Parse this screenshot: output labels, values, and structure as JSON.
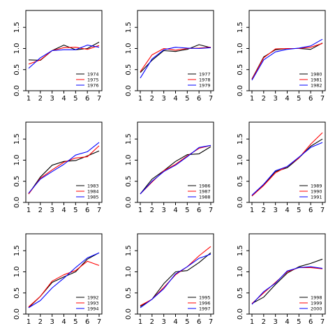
{
  "chart_data": [
    {
      "type": "line",
      "x": [
        1,
        2,
        3,
        4,
        5,
        6,
        7
      ],
      "xlim": [
        1,
        7
      ],
      "ylim": [
        0,
        1.9
      ],
      "yticks": [
        0.0,
        0.5,
        1.0,
        1.5
      ],
      "ytick_labels": [
        "0.0",
        "0.5",
        "1.0",
        "1.5"
      ],
      "xtick_labels": [
        "1",
        "2",
        "3",
        "4",
        "5",
        "6",
        "7"
      ],
      "legend": "bottom-right",
      "series": [
        {
          "name": "1974",
          "color": "#000000",
          "values": [
            0.73,
            0.72,
            0.95,
            1.08,
            0.97,
            1.0,
            1.15
          ]
        },
        {
          "name": "1975",
          "color": "#ff0000",
          "values": [
            0.63,
            0.73,
            0.95,
            1.02,
            1.03,
            0.98,
            1.07
          ]
        },
        {
          "name": "1976",
          "color": "#0000ff",
          "values": [
            0.53,
            0.78,
            0.95,
            0.97,
            0.97,
            1.08,
            1.03
          ]
        }
      ]
    },
    {
      "type": "line",
      "x": [
        1,
        2,
        3,
        4,
        5,
        6,
        7
      ],
      "xlim": [
        1,
        7
      ],
      "ylim": [
        0,
        1.9
      ],
      "yticks": [
        0.0,
        0.5,
        1.0,
        1.5
      ],
      "ytick_labels": [
        "0.0",
        "0.5",
        "1.0",
        "1.5"
      ],
      "xtick_labels": [
        "1",
        "2",
        "3",
        "4",
        "5",
        "6",
        "7"
      ],
      "legend": "bottom-right",
      "series": [
        {
          "name": "1977",
          "color": "#000000",
          "values": [
            0.43,
            0.72,
            0.95,
            0.93,
            0.98,
            1.09,
            1.02
          ]
        },
        {
          "name": "1978",
          "color": "#ff0000",
          "values": [
            0.45,
            0.85,
            1.0,
            0.96,
            1.0,
            1.01,
            1.03
          ]
        },
        {
          "name": "1979",
          "color": "#0000ff",
          "values": [
            0.3,
            0.75,
            0.97,
            1.03,
            1.01,
            1.0,
            1.02
          ]
        }
      ]
    },
    {
      "type": "line",
      "x": [
        1,
        2,
        3,
        4,
        5,
        6,
        7
      ],
      "xlim": [
        1,
        7
      ],
      "ylim": [
        0,
        1.9
      ],
      "yticks": [
        0.0,
        0.5,
        1.0,
        1.5
      ],
      "ytick_labels": [
        "0.0",
        "0.5",
        "1.0",
        "1.5"
      ],
      "xtick_labels": [
        "1",
        "2",
        "3",
        "4",
        "5",
        "6",
        "7"
      ],
      "legend": "bottom-right",
      "series": [
        {
          "name": "1980",
          "color": "#000000",
          "values": [
            0.28,
            0.8,
            0.97,
            1.0,
            1.0,
            0.98,
            1.13
          ]
        },
        {
          "name": "1981",
          "color": "#ff0000",
          "values": [
            0.27,
            0.78,
            0.99,
            1.0,
            1.0,
            1.03,
            1.12
          ]
        },
        {
          "name": "1982",
          "color": "#0000ff",
          "values": [
            0.25,
            0.73,
            0.92,
            0.98,
            1.01,
            1.06,
            1.22
          ]
        }
      ]
    },
    {
      "type": "line",
      "x": [
        1,
        2,
        3,
        4,
        5,
        6,
        7
      ],
      "xlim": [
        1,
        7
      ],
      "ylim": [
        0,
        1.9
      ],
      "yticks": [
        0.0,
        0.5,
        1.0,
        1.5
      ],
      "ytick_labels": [
        "0.0",
        "0.5",
        "1.0",
        "1.5"
      ],
      "xtick_labels": [
        "1",
        "2",
        "3",
        "4",
        "5",
        "6",
        "7"
      ],
      "legend": "bottom-right",
      "series": [
        {
          "name": "1983",
          "color": "#000000",
          "values": [
            0.2,
            0.6,
            0.88,
            0.97,
            0.99,
            1.1,
            1.22
          ]
        },
        {
          "name": "1984",
          "color": "#ff0000",
          "values": [
            0.2,
            0.57,
            0.77,
            0.95,
            1.05,
            1.08,
            1.34
          ]
        },
        {
          "name": "1985",
          "color": "#0000ff",
          "values": [
            0.22,
            0.55,
            0.73,
            0.9,
            1.12,
            1.2,
            1.42
          ]
        }
      ]
    },
    {
      "type": "line",
      "x": [
        1,
        2,
        3,
        4,
        5,
        6,
        7
      ],
      "xlim": [
        1,
        7
      ],
      "ylim": [
        0,
        1.9
      ],
      "yticks": [
        0.0,
        0.5,
        1.0,
        1.5
      ],
      "ytick_labels": [
        "0.0",
        "0.5",
        "1.0",
        "1.5"
      ],
      "xtick_labels": [
        "1",
        "2",
        "3",
        "4",
        "5",
        "6",
        "7"
      ],
      "legend": "bottom-right",
      "series": [
        {
          "name": "1986",
          "color": "#000000",
          "values": [
            0.2,
            0.55,
            0.75,
            0.97,
            1.13,
            1.15,
            1.32
          ]
        },
        {
          "name": "1987",
          "color": "#ff0000",
          "values": [
            0.2,
            0.48,
            0.75,
            0.9,
            1.1,
            1.28,
            1.35
          ]
        },
        {
          "name": "1988",
          "color": "#0000ff",
          "values": [
            0.2,
            0.5,
            0.73,
            0.88,
            1.08,
            1.3,
            1.35
          ]
        }
      ]
    },
    {
      "type": "line",
      "x": [
        1,
        2,
        3,
        4,
        5,
        6,
        7
      ],
      "xlim": [
        1,
        7
      ],
      "ylim": [
        0,
        1.9
      ],
      "yticks": [
        0.0,
        0.5,
        1.0,
        1.5
      ],
      "ytick_labels": [
        "0.0",
        "0.5",
        "1.0",
        "1.5"
      ],
      "xtick_labels": [
        "1",
        "2",
        "3",
        "4",
        "5",
        "6",
        "7"
      ],
      "legend": "bottom-right",
      "series": [
        {
          "name": "1989",
          "color": "#000000",
          "values": [
            0.15,
            0.42,
            0.73,
            0.82,
            1.05,
            1.33,
            1.5
          ]
        },
        {
          "name": "1990",
          "color": "#ff0000",
          "values": [
            0.15,
            0.4,
            0.7,
            0.85,
            1.05,
            1.38,
            1.65
          ]
        },
        {
          "name": "1991",
          "color": "#0000ff",
          "values": [
            0.17,
            0.43,
            0.75,
            0.85,
            1.07,
            1.3,
            1.42
          ]
        }
      ]
    },
    {
      "type": "line",
      "x": [
        1,
        2,
        3,
        4,
        5,
        6,
        7
      ],
      "xlim": [
        1,
        7
      ],
      "ylim": [
        0,
        1.9
      ],
      "yticks": [
        0.0,
        0.5,
        1.0,
        1.5
      ],
      "ytick_labels": [
        "0.0",
        "0.5",
        "1.0",
        "1.5"
      ],
      "xtick_labels": [
        "1",
        "2",
        "3",
        "4",
        "5",
        "6",
        "7"
      ],
      "legend": "bottom-right",
      "series": [
        {
          "name": "1992",
          "color": "#000000",
          "values": [
            0.15,
            0.42,
            0.75,
            0.88,
            1.0,
            1.3,
            1.45
          ]
        },
        {
          "name": "1993",
          "color": "#ff0000",
          "values": [
            0.17,
            0.42,
            0.78,
            0.93,
            1.03,
            1.25,
            1.15
          ]
        },
        {
          "name": "1994",
          "color": "#0000ff",
          "values": [
            0.15,
            0.32,
            0.62,
            0.85,
            1.1,
            1.33,
            1.45
          ]
        }
      ]
    },
    {
      "type": "line",
      "x": [
        1,
        2,
        3,
        4,
        5,
        6,
        7
      ],
      "xlim": [
        1,
        7
      ],
      "ylim": [
        0,
        1.9
      ],
      "yticks": [
        0.0,
        0.5,
        1.0,
        1.5
      ],
      "ytick_labels": [
        "0.0",
        "0.5",
        "1.0",
        "1.5"
      ],
      "xtick_labels": [
        "1",
        "2",
        "3",
        "4",
        "5",
        "6",
        "7"
      ],
      "legend": "bottom-right",
      "series": [
        {
          "name": "1995",
          "color": "#000000",
          "values": [
            0.18,
            0.35,
            0.72,
            1.0,
            1.03,
            1.22,
            1.45
          ]
        },
        {
          "name": "1996",
          "color": "#ff0000",
          "values": [
            0.2,
            0.35,
            0.63,
            0.93,
            1.12,
            1.38,
            1.6
          ]
        },
        {
          "name": "1997",
          "color": "#0000ff",
          "values": [
            0.15,
            0.35,
            0.6,
            0.95,
            1.12,
            1.32,
            1.42
          ]
        }
      ]
    },
    {
      "type": "line",
      "x": [
        1,
        2,
        3,
        4,
        5,
        6,
        7
      ],
      "xlim": [
        1,
        7
      ],
      "ylim": [
        0,
        1.9
      ],
      "yticks": [
        0.0,
        0.5,
        1.0,
        1.5
      ],
      "ytick_labels": [
        "0.0",
        "0.5",
        "1.0",
        "1.5"
      ],
      "xtick_labels": [
        "1",
        "2",
        "3",
        "4",
        "5",
        "6",
        "7"
      ],
      "legend": "bottom-right",
      "series": [
        {
          "name": "1998",
          "color": "#000000",
          "values": [
            0.25,
            0.4,
            0.7,
            0.97,
            1.12,
            1.2,
            1.3
          ]
        },
        {
          "name": "1999",
          "color": "#ff0000",
          "values": [
            0.25,
            0.5,
            0.75,
            1.0,
            1.1,
            1.1,
            1.07
          ]
        },
        {
          "name": "2000",
          "color": "#0000ff",
          "values": [
            0.23,
            0.53,
            0.73,
            1.02,
            1.1,
            1.12,
            1.08
          ]
        }
      ]
    }
  ]
}
